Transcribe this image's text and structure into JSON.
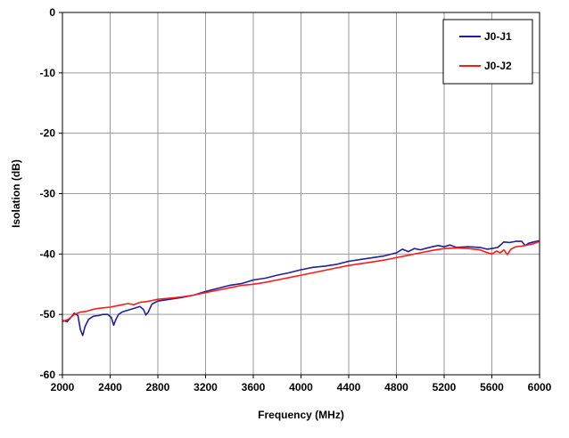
{
  "chart_data": {
    "type": "line",
    "title": "",
    "xlabel": "Frequency (MHz)",
    "ylabel": "Isolation (dB)",
    "xlim": [
      2000,
      6000
    ],
    "ylim": [
      -60,
      0
    ],
    "x_ticks": [
      2000,
      2400,
      2800,
      3200,
      3600,
      4000,
      4400,
      4800,
      5200,
      5600,
      6000
    ],
    "y_ticks": [
      0,
      -10,
      -20,
      -30,
      -40,
      -50,
      -60
    ],
    "grid": true,
    "legend_position": "top-right",
    "series": [
      {
        "name": "J0-J1",
        "color": "#1f1f9e",
        "points": [
          [
            2000,
            -51.0
          ],
          [
            2040,
            -51.2
          ],
          [
            2070,
            -50.5
          ],
          [
            2100,
            -49.8
          ],
          [
            2130,
            -50.2
          ],
          [
            2150,
            -52.5
          ],
          [
            2170,
            -53.5
          ],
          [
            2190,
            -52.0
          ],
          [
            2220,
            -50.8
          ],
          [
            2260,
            -50.3
          ],
          [
            2300,
            -50.2
          ],
          [
            2340,
            -50.0
          ],
          [
            2380,
            -50.0
          ],
          [
            2410,
            -50.5
          ],
          [
            2430,
            -51.8
          ],
          [
            2445,
            -51.0
          ],
          [
            2470,
            -50.0
          ],
          [
            2500,
            -49.6
          ],
          [
            2550,
            -49.3
          ],
          [
            2600,
            -49.0
          ],
          [
            2650,
            -48.7
          ],
          [
            2680,
            -49.2
          ],
          [
            2700,
            -50.1
          ],
          [
            2720,
            -49.6
          ],
          [
            2750,
            -48.3
          ],
          [
            2800,
            -47.8
          ],
          [
            2900,
            -47.5
          ],
          [
            3000,
            -47.2
          ],
          [
            3100,
            -46.8
          ],
          [
            3200,
            -46.2
          ],
          [
            3300,
            -45.7
          ],
          [
            3400,
            -45.2
          ],
          [
            3500,
            -44.9
          ],
          [
            3600,
            -44.3
          ],
          [
            3700,
            -44.0
          ],
          [
            3800,
            -43.5
          ],
          [
            3900,
            -43.1
          ],
          [
            4000,
            -42.6
          ],
          [
            4100,
            -42.2
          ],
          [
            4200,
            -42.0
          ],
          [
            4300,
            -41.7
          ],
          [
            4400,
            -41.2
          ],
          [
            4500,
            -40.9
          ],
          [
            4600,
            -40.6
          ],
          [
            4700,
            -40.3
          ],
          [
            4800,
            -39.8
          ],
          [
            4850,
            -39.2
          ],
          [
            4900,
            -39.6
          ],
          [
            4950,
            -39.1
          ],
          [
            5000,
            -39.3
          ],
          [
            5100,
            -38.8
          ],
          [
            5150,
            -38.6
          ],
          [
            5200,
            -38.8
          ],
          [
            5250,
            -38.5
          ],
          [
            5300,
            -38.9
          ],
          [
            5400,
            -38.8
          ],
          [
            5500,
            -38.9
          ],
          [
            5560,
            -39.2
          ],
          [
            5600,
            -39.1
          ],
          [
            5650,
            -38.9
          ],
          [
            5700,
            -38.0
          ],
          [
            5750,
            -38.1
          ],
          [
            5800,
            -37.9
          ],
          [
            5850,
            -37.9
          ],
          [
            5880,
            -38.6
          ],
          [
            5910,
            -38.2
          ],
          [
            5950,
            -38.0
          ],
          [
            6000,
            -37.8
          ]
        ]
      },
      {
        "name": "J0-J2",
        "color": "#ff1a1a",
        "points": [
          [
            2000,
            -51.2
          ],
          [
            2050,
            -50.8
          ],
          [
            2100,
            -50.0
          ],
          [
            2150,
            -49.6
          ],
          [
            2200,
            -49.5
          ],
          [
            2250,
            -49.2
          ],
          [
            2300,
            -49.0
          ],
          [
            2350,
            -48.9
          ],
          [
            2400,
            -48.8
          ],
          [
            2450,
            -48.6
          ],
          [
            2500,
            -48.4
          ],
          [
            2550,
            -48.2
          ],
          [
            2600,
            -48.4
          ],
          [
            2650,
            -48.0
          ],
          [
            2700,
            -47.9
          ],
          [
            2750,
            -47.7
          ],
          [
            2800,
            -47.5
          ],
          [
            2900,
            -47.3
          ],
          [
            3000,
            -47.1
          ],
          [
            3100,
            -46.8
          ],
          [
            3200,
            -46.4
          ],
          [
            3300,
            -46.0
          ],
          [
            3400,
            -45.6
          ],
          [
            3500,
            -45.2
          ],
          [
            3600,
            -45.0
          ],
          [
            3700,
            -44.7
          ],
          [
            3800,
            -44.3
          ],
          [
            3900,
            -43.9
          ],
          [
            4000,
            -43.5
          ],
          [
            4100,
            -43.1
          ],
          [
            4200,
            -42.7
          ],
          [
            4300,
            -42.3
          ],
          [
            4400,
            -41.9
          ],
          [
            4500,
            -41.6
          ],
          [
            4600,
            -41.3
          ],
          [
            4700,
            -41.0
          ],
          [
            4800,
            -40.6
          ],
          [
            4900,
            -40.2
          ],
          [
            5000,
            -39.8
          ],
          [
            5100,
            -39.4
          ],
          [
            5200,
            -39.1
          ],
          [
            5300,
            -39.0
          ],
          [
            5400,
            -39.1
          ],
          [
            5500,
            -39.3
          ],
          [
            5550,
            -39.7
          ],
          [
            5600,
            -40.0
          ],
          [
            5640,
            -39.5
          ],
          [
            5670,
            -39.8
          ],
          [
            5700,
            -39.3
          ],
          [
            5730,
            -40.1
          ],
          [
            5760,
            -39.2
          ],
          [
            5800,
            -38.8
          ],
          [
            5850,
            -38.7
          ],
          [
            5900,
            -38.5
          ],
          [
            5950,
            -38.3
          ],
          [
            6000,
            -37.9
          ]
        ]
      }
    ]
  }
}
